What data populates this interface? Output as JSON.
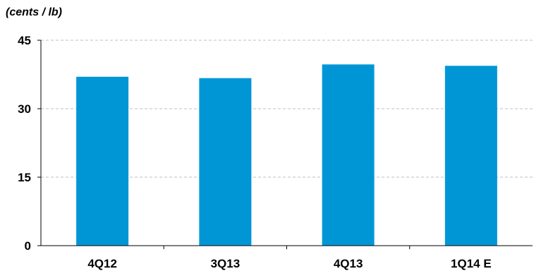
{
  "chart_data": {
    "type": "bar",
    "ylabel": "(cents / lb)",
    "categories": [
      "4Q12",
      "3Q13",
      "4Q13",
      "1Q14 E"
    ],
    "values": [
      37.0,
      36.7,
      39.7,
      39.4
    ],
    "ylim": [
      0,
      45
    ],
    "yticks": [
      0,
      15,
      30,
      45
    ],
    "grid": true,
    "legend": "none",
    "colors": {
      "bar": "#0096D6",
      "grid": "#bfbfbf",
      "axis": "#000000",
      "text": "#000000"
    }
  }
}
